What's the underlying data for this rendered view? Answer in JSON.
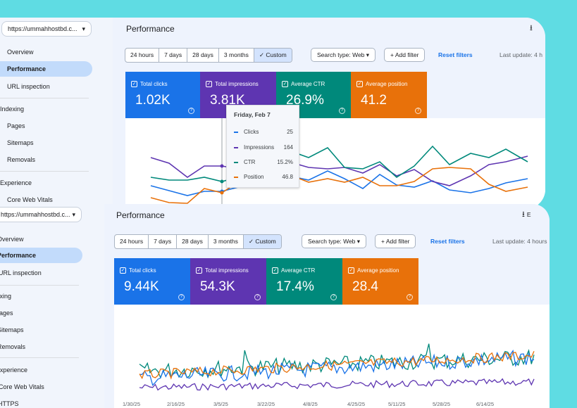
{
  "top": {
    "property": "https://ummahhostbd.c...",
    "nav": [
      "Overview",
      "Performance",
      "URL inspection",
      "Indexing",
      "Pages",
      "Sitemaps",
      "Removals",
      "Experience",
      "Core Web Vitals"
    ],
    "title": "Performance",
    "ranges": [
      "24 hours",
      "7 days",
      "28 days",
      "3 months",
      "Custom"
    ],
    "search_type": "Search type: Web",
    "add_filter": "Add filter",
    "reset": "Reset filters",
    "last_update": "Last update: 4 h",
    "metrics": [
      {
        "label": "Total clicks",
        "value": "1.02K",
        "color": "#1a73e8"
      },
      {
        "label": "Total impressions",
        "value": "3.81K",
        "color": "#5e35b1"
      },
      {
        "label": "Average CTR",
        "value": "26.9%",
        "color": "#00897b"
      },
      {
        "label": "Average position",
        "value": "41.2",
        "color": "#e8710a"
      }
    ],
    "tooltip": {
      "date": "Friday, Feb 7",
      "rows": [
        {
          "name": "Clicks",
          "value": "25",
          "color": "#1a73e8"
        },
        {
          "name": "Impressions",
          "value": "164",
          "color": "#5e35b1"
        },
        {
          "name": "CTR",
          "value": "15.2%",
          "color": "#00897b"
        },
        {
          "name": "Position",
          "value": "46.8",
          "color": "#e8710a"
        }
      ]
    }
  },
  "bottom": {
    "property": "https://ummahhostbd.c...",
    "nav": [
      "Overview",
      "Performance",
      "URL inspection",
      "Indexing",
      "Pages",
      "Sitemaps",
      "Removals",
      "Experience",
      "Core Web Vitals",
      "HTTPS"
    ],
    "title": "Performance",
    "export": "E",
    "ranges": [
      "24 hours",
      "7 days",
      "28 days",
      "3 months",
      "Custom"
    ],
    "search_type": "Search type: Web",
    "add_filter": "Add filter",
    "reset": "Reset filters",
    "last_update": "Last update: 4 hours",
    "metrics": [
      {
        "label": "Total clicks",
        "value": "9.44K",
        "color": "#1a73e8"
      },
      {
        "label": "Total impressions",
        "value": "54.3K",
        "color": "#5e35b1"
      },
      {
        "label": "Average CTR",
        "value": "17.4%",
        "color": "#00897b"
      },
      {
        "label": "Average position",
        "value": "28.4",
        "color": "#e8710a"
      }
    ],
    "x_ticks": [
      "1/30/25",
      "2/16/25",
      "3/5/25",
      "3/22/25",
      "4/8/25",
      "4/25/25",
      "5/11/25",
      "5/28/25",
      "6/14/25"
    ]
  }
}
